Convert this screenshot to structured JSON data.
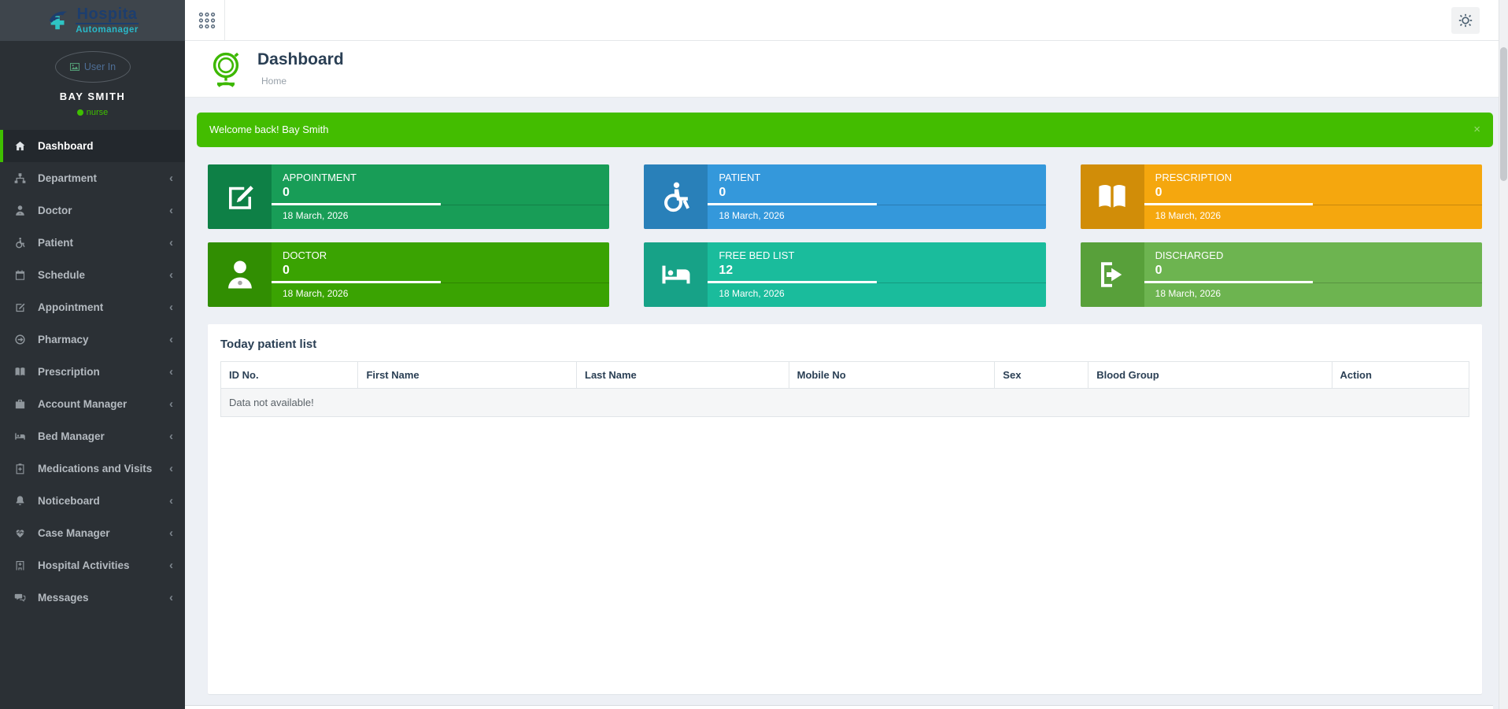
{
  "brand": {
    "name": "Hospita",
    "suffix": "Automanager"
  },
  "topbar": {
    "grid_icon": "apps-grid",
    "gear_icon": "settings-gear"
  },
  "user": {
    "avatar_text": "User In",
    "name": "BAY SMITH",
    "role": "nurse",
    "role_color": "#3fbf00"
  },
  "sidebar": {
    "items": [
      {
        "label": "Dashboard",
        "icon": "home-icon",
        "active": true,
        "has_submenu": false
      },
      {
        "label": "Department",
        "icon": "sitemap-icon",
        "active": false,
        "has_submenu": true
      },
      {
        "label": "Doctor",
        "icon": "doctor-icon",
        "active": false,
        "has_submenu": true
      },
      {
        "label": "Patient",
        "icon": "wheelchair-icon",
        "active": false,
        "has_submenu": true
      },
      {
        "label": "Schedule",
        "icon": "calendar-icon",
        "active": false,
        "has_submenu": true
      },
      {
        "label": "Appointment",
        "icon": "edit-icon",
        "active": false,
        "has_submenu": true
      },
      {
        "label": "Pharmacy",
        "icon": "arrow-circle-icon",
        "active": false,
        "has_submenu": true
      },
      {
        "label": "Prescription",
        "icon": "book-icon",
        "active": false,
        "has_submenu": true
      },
      {
        "label": "Account Manager",
        "icon": "briefcase-icon",
        "active": false,
        "has_submenu": true
      },
      {
        "label": "Bed Manager",
        "icon": "bed-icon",
        "active": false,
        "has_submenu": true
      },
      {
        "label": "Medications and Visits",
        "icon": "clipboard-icon",
        "active": false,
        "has_submenu": true
      },
      {
        "label": "Noticeboard",
        "icon": "bell-icon",
        "active": false,
        "has_submenu": true
      },
      {
        "label": "Case Manager",
        "icon": "heart-icon",
        "active": false,
        "has_submenu": true
      },
      {
        "label": "Hospital Activities",
        "icon": "hospital-icon",
        "active": false,
        "has_submenu": true
      },
      {
        "label": "Messages",
        "icon": "comments-icon",
        "active": false,
        "has_submenu": true
      }
    ],
    "chevron": "‹"
  },
  "header": {
    "title": "Dashboard",
    "breadcrumb": "Home",
    "globe_icon": "globe-icon"
  },
  "banner": {
    "text": "Welcome back! Bay Smith",
    "close": "×",
    "color": "#43bd00"
  },
  "cards": [
    {
      "title": "APPOINTMENT",
      "value": "0",
      "date": "18 March, 2026",
      "icon": "pencil-square-icon",
      "body_color": "#189d57",
      "accent_color": "#0e8046"
    },
    {
      "title": "PATIENT",
      "value": "0",
      "date": "18 March, 2026",
      "icon": "wheelchair-icon",
      "body_color": "#3498db",
      "accent_color": "#2980b9"
    },
    {
      "title": "PRESCRIPTION",
      "value": "0",
      "date": "18 March, 2026",
      "icon": "open-book-icon",
      "body_color": "#f5a70e",
      "accent_color": "#d18d08"
    },
    {
      "title": "DOCTOR",
      "value": "0",
      "date": "18 March, 2026",
      "icon": "doctor-icon",
      "body_color": "#3aa302",
      "accent_color": "#318e02"
    },
    {
      "title": "FREE BED LIST",
      "value": "12",
      "date": "18 March, 2026",
      "icon": "bed-icon",
      "body_color": "#1abc9c",
      "accent_color": "#17a287"
    },
    {
      "title": "DISCHARGED",
      "value": "0",
      "date": "18 March, 2026",
      "icon": "sign-out-icon",
      "body_color": "#6db450",
      "accent_color": "#58a03a"
    }
  ],
  "patient_table": {
    "title": "Today patient list",
    "columns": [
      "ID No.",
      "First Name",
      "Last Name",
      "Mobile No",
      "Sex",
      "Blood Group",
      "Action"
    ],
    "empty_message": "Data not available!"
  }
}
